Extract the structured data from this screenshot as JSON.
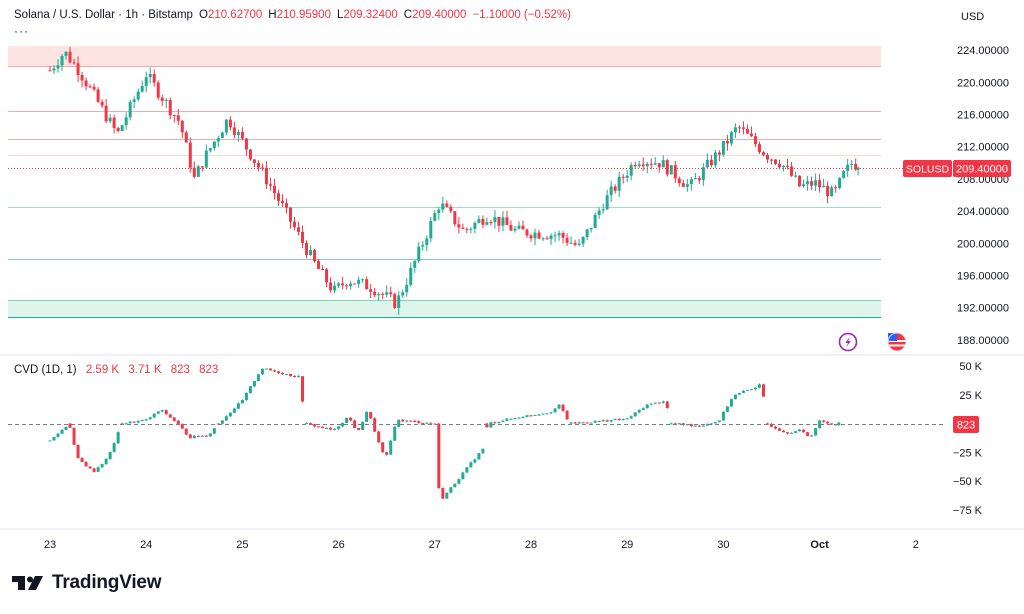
{
  "header": {
    "symbol_title": "Solana / U.S. Dollar · 1h · Bitstamp",
    "o_label": "O",
    "o_value": "210.62700",
    "h_label": "H",
    "h_value": "210.95900",
    "l_label": "L",
    "l_value": "209.32400",
    "c_label": "C",
    "c_value": "209.40000",
    "change": "−1.10000 (−0.52%)",
    "dots": "···"
  },
  "cvd_header": {
    "title": "CVD (1D, 1)",
    "values": [
      "2.59 K",
      "3.71 K",
      "823",
      "823"
    ]
  },
  "currency_label": "USD",
  "symbol_badge": {
    "symbol": "SOLUSD",
    "price": "209.40000"
  },
  "cvd_badge": "823",
  "brand": "TradingView",
  "icons": {
    "lightning": "lightning-icon",
    "flag": "us-flag-icon",
    "logo": "tradingview-logo-icon"
  },
  "colors": {
    "up": "#22ab94",
    "down": "#f23645",
    "price_line": "#f23645",
    "cvd_zero_line": "#787b86"
  },
  "chart_data": [
    {
      "type": "candlestick",
      "title": "Solana / U.S. Dollar · 1h · Bitstamp",
      "y_ticks": [
        224,
        220,
        216,
        212,
        208,
        204,
        200,
        196,
        192,
        188
      ],
      "y_tick_labels": [
        "224.00000",
        "220.00000",
        "216.00000",
        "212.00000",
        "208.00000",
        "204.00000",
        "200.00000",
        "196.00000",
        "192.00000",
        "188.00000"
      ],
      "ylim": [
        186.5,
        226.5
      ],
      "x_ticks": [
        "23",
        "24",
        "25",
        "26",
        "27",
        "28",
        "29",
        "30",
        "Oct",
        "2"
      ],
      "last_price": 209.4,
      "anchors": [
        {
          "t": 0,
          "v": 221.5
        },
        {
          "t": 0.15,
          "v": 223.8
        },
        {
          "t": 0.3,
          "v": 221.5
        },
        {
          "t": 0.7,
          "v": 213.5
        },
        {
          "t": 1.0,
          "v": 221.0
        },
        {
          "t": 1.35,
          "v": 215.0
        },
        {
          "t": 1.5,
          "v": 208.0
        },
        {
          "t": 1.6,
          "v": 210.5
        },
        {
          "t": 1.85,
          "v": 215.5
        },
        {
          "t": 2.3,
          "v": 207.0
        },
        {
          "t": 2.75,
          "v": 197.5
        },
        {
          "t": 2.95,
          "v": 194.0
        },
        {
          "t": 3.1,
          "v": 195.5
        },
        {
          "t": 3.35,
          "v": 194.5
        },
        {
          "t": 3.6,
          "v": 192.5
        },
        {
          "t": 3.75,
          "v": 196.5
        },
        {
          "t": 4.05,
          "v": 205.0
        },
        {
          "t": 4.3,
          "v": 201.5
        },
        {
          "t": 4.55,
          "v": 203.5
        },
        {
          "t": 4.85,
          "v": 201.5
        },
        {
          "t": 5.3,
          "v": 201.0
        },
        {
          "t": 5.5,
          "v": 199.5
        },
        {
          "t": 5.75,
          "v": 205.0
        },
        {
          "t": 6.1,
          "v": 210.5
        },
        {
          "t": 6.35,
          "v": 210.0
        },
        {
          "t": 6.65,
          "v": 207.0
        },
        {
          "t": 7.0,
          "v": 212.0
        },
        {
          "t": 7.15,
          "v": 214.5
        },
        {
          "t": 7.45,
          "v": 211.0
        },
        {
          "t": 7.6,
          "v": 210.0
        },
        {
          "t": 7.8,
          "v": 207.0
        },
        {
          "t": 7.95,
          "v": 207.5
        },
        {
          "t": 8.15,
          "v": 206.0
        },
        {
          "t": 8.25,
          "v": 208.5
        },
        {
          "t": 8.35,
          "v": 210.2
        },
        {
          "t": 8.4,
          "v": 209.4
        }
      ],
      "levels": [
        {
          "value": 222.0,
          "color": "#f7a9a7"
        },
        {
          "value": 216.5,
          "color": "#f7a9a7"
        },
        {
          "value": 213.0,
          "color": "#f7a9a7"
        },
        {
          "value": 211.0,
          "color": "#fcd9d6"
        },
        {
          "value": 204.5,
          "color": "#9fe0c7"
        },
        {
          "value": 198.0,
          "color": "#7fd6b0"
        },
        {
          "value": 193.0,
          "color": "#7fd6b0"
        },
        {
          "value": 190.8,
          "color": "#22ab94"
        }
      ],
      "zones": [
        {
          "from": 222.0,
          "to": 224.5,
          "color": "#fde3e1"
        },
        {
          "from": 190.8,
          "to": 193.0,
          "color": "#dff5ec"
        }
      ]
    },
    {
      "type": "candlestick",
      "title": "CVD (1D, 1)",
      "y_ticks": [
        50000,
        25000,
        0,
        -25000,
        -50000,
        -75000
      ],
      "y_tick_labels": [
        "50 K",
        "25 K",
        "",
        "−25 K",
        "−50 K",
        "−75 K"
      ],
      "ylim": [
        -90000,
        57000
      ],
      "last_value": 823,
      "anchors": [
        {
          "t": 0,
          "v": -15000
        },
        {
          "t": 0.2,
          "v": 0
        },
        {
          "t": 0.28,
          "v": -30000
        },
        {
          "t": 0.45,
          "v": -42000
        },
        {
          "t": 0.6,
          "v": -30000
        },
        {
          "t": 0.75,
          "v": 0
        },
        {
          "t": 1.0,
          "v": 3000
        },
        {
          "t": 1.15,
          "v": 12000
        },
        {
          "t": 1.3,
          "v": 2000
        },
        {
          "t": 1.45,
          "v": -12000
        },
        {
          "t": 1.65,
          "v": -10000
        },
        {
          "t": 1.75,
          "v": 0
        },
        {
          "t": 2.0,
          "v": 20000
        },
        {
          "t": 2.2,
          "v": 48000
        },
        {
          "t": 2.4,
          "v": 44000
        },
        {
          "t": 2.6,
          "v": 40000
        },
        {
          "t": 2.65,
          "v": 0
        },
        {
          "t": 2.95,
          "v": -6000
        },
        {
          "t": 3.1,
          "v": 6000
        },
        {
          "t": 3.2,
          "v": -8000
        },
        {
          "t": 3.3,
          "v": 12000
        },
        {
          "t": 3.45,
          "v": -25000
        },
        {
          "t": 3.5,
          "v": -28000
        },
        {
          "t": 3.6,
          "v": 3000
        },
        {
          "t": 4.0,
          "v": 0
        },
        {
          "t": 4.05,
          "v": -68000
        },
        {
          "t": 4.4,
          "v": -32000
        },
        {
          "t": 4.5,
          "v": -22000
        },
        {
          "t": 4.55,
          "v": 0
        },
        {
          "t": 4.9,
          "v": 6000
        },
        {
          "t": 5.2,
          "v": 10000
        },
        {
          "t": 5.3,
          "v": 16000
        },
        {
          "t": 5.4,
          "v": 0
        },
        {
          "t": 6.0,
          "v": 4000
        },
        {
          "t": 6.2,
          "v": 16000
        },
        {
          "t": 6.4,
          "v": 20000
        },
        {
          "t": 6.45,
          "v": 0
        },
        {
          "t": 6.75,
          "v": -2000
        },
        {
          "t": 6.95,
          "v": 2000
        },
        {
          "t": 7.1,
          "v": 24000
        },
        {
          "t": 7.4,
          "v": 34000
        },
        {
          "t": 7.45,
          "v": 0
        },
        {
          "t": 7.65,
          "v": -8000
        },
        {
          "t": 7.8,
          "v": -6000
        },
        {
          "t": 7.9,
          "v": -12000
        },
        {
          "t": 8.0,
          "v": 2000
        },
        {
          "t": 8.15,
          "v": -1000
        },
        {
          "t": 8.2,
          "v": 823
        }
      ]
    }
  ]
}
